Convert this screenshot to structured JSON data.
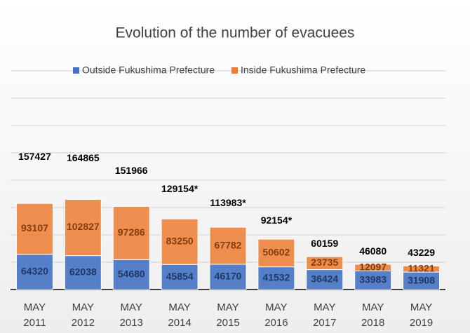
{
  "chart_data": {
    "type": "stacked_bar",
    "title": "Evolution of the number of evacuees",
    "categories": [
      "MAY 2011",
      "MAY 2012",
      "MAY 2013",
      "MAY 2014",
      "MAY 2015",
      "MAY 2016",
      "MAY 2017",
      "MAY 2018",
      "MAY 2019"
    ],
    "series": [
      {
        "name": "Outside Fukushima Prefecture",
        "color": "#4472c4",
        "label_color": "#1f3864",
        "values": [
          64320,
          62038,
          54680,
          45854,
          46170,
          41532,
          36424,
          33983,
          31908
        ]
      },
      {
        "name": "Inside Fukushima Prefecture",
        "color": "#ed7d31",
        "label_color": "#843c0c",
        "values": [
          93107,
          102827,
          97286,
          83250,
          67782,
          50602,
          23735,
          12097,
          11321
        ]
      }
    ],
    "total_labels": [
      "157427",
      "164865",
      "151966",
      "129154*",
      "113983*",
      "92154*",
      "60159",
      "46080",
      "43229"
    ],
    "ylim": [
      0,
      400000
    ],
    "yticks": [
      0,
      50000,
      100000,
      150000,
      200000,
      250000,
      300000,
      350000,
      400000
    ],
    "grid": true,
    "legend": "top"
  }
}
